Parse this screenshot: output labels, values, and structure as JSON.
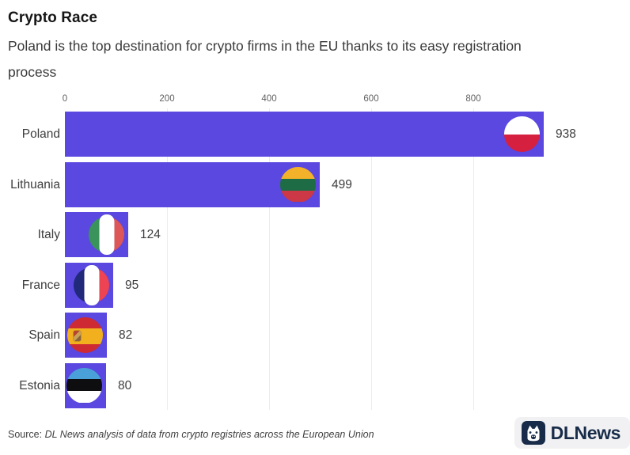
{
  "header": {
    "title": "Crypto Race",
    "subtitle": "Poland is the top destination for crypto firms in the EU thanks to its easy registration process"
  },
  "chart_data": {
    "type": "bar",
    "orientation": "horizontal",
    "title": "Crypto Race",
    "subtitle": "Poland is the top destination for crypto firms in the EU thanks to its easy registration process",
    "categories": [
      "Poland",
      "Lithuania",
      "Italy",
      "France",
      "Spain",
      "Estonia"
    ],
    "values": [
      938,
      499,
      124,
      95,
      82,
      80
    ],
    "x_ticks": [
      0,
      200,
      400,
      600,
      800
    ],
    "xlim": [
      0,
      938
    ],
    "grid": "vertical-light",
    "legend": "none",
    "bar_color": "#5a48e0",
    "flags": [
      {
        "name": "poland-flag",
        "type": "horizontal",
        "stripes": [
          {
            "color": "#ffffff",
            "size": 50
          },
          {
            "color": "#d62040",
            "size": 50
          }
        ]
      },
      {
        "name": "lithuania-flag",
        "type": "horizontal",
        "stripes": [
          {
            "color": "#f3b229",
            "size": 34
          },
          {
            "color": "#1e6c45",
            "size": 33
          },
          {
            "color": "#cc3845",
            "size": 33
          }
        ]
      },
      {
        "name": "italy-flag",
        "type": "vertical",
        "stripes": [
          {
            "color": "#39935a",
            "size": 50
          },
          {
            "color": "#dd5658",
            "size": 50
          }
        ],
        "pill": "#ffffff"
      },
      {
        "name": "france-flag",
        "type": "vertical",
        "stripes": [
          {
            "color": "#21297b",
            "size": 50
          },
          {
            "color": "#ee4352",
            "size": 50
          }
        ],
        "pill": "#ffffff"
      },
      {
        "name": "spain-flag",
        "type": "horizontal",
        "stripes": [
          {
            "color": "#cd2a33",
            "size": 30
          },
          {
            "color": "#f2b01e",
            "size": 45
          },
          {
            "color": "#cd2a33",
            "size": 25
          }
        ],
        "emblem": true
      },
      {
        "name": "estonia-flag",
        "type": "horizontal",
        "stripes": [
          {
            "color": "#4aa0d8",
            "size": 33
          },
          {
            "color": "#0e0e10",
            "size": 33
          },
          {
            "color": "#ffffff",
            "size": 34
          }
        ]
      }
    ]
  },
  "footer": {
    "source_prefix": "Source:",
    "source_text": "DL News analysis of data from crypto registries across the European Union",
    "logo_dl": "DL",
    "logo_news": "News",
    "logo_color": "#182c49"
  }
}
